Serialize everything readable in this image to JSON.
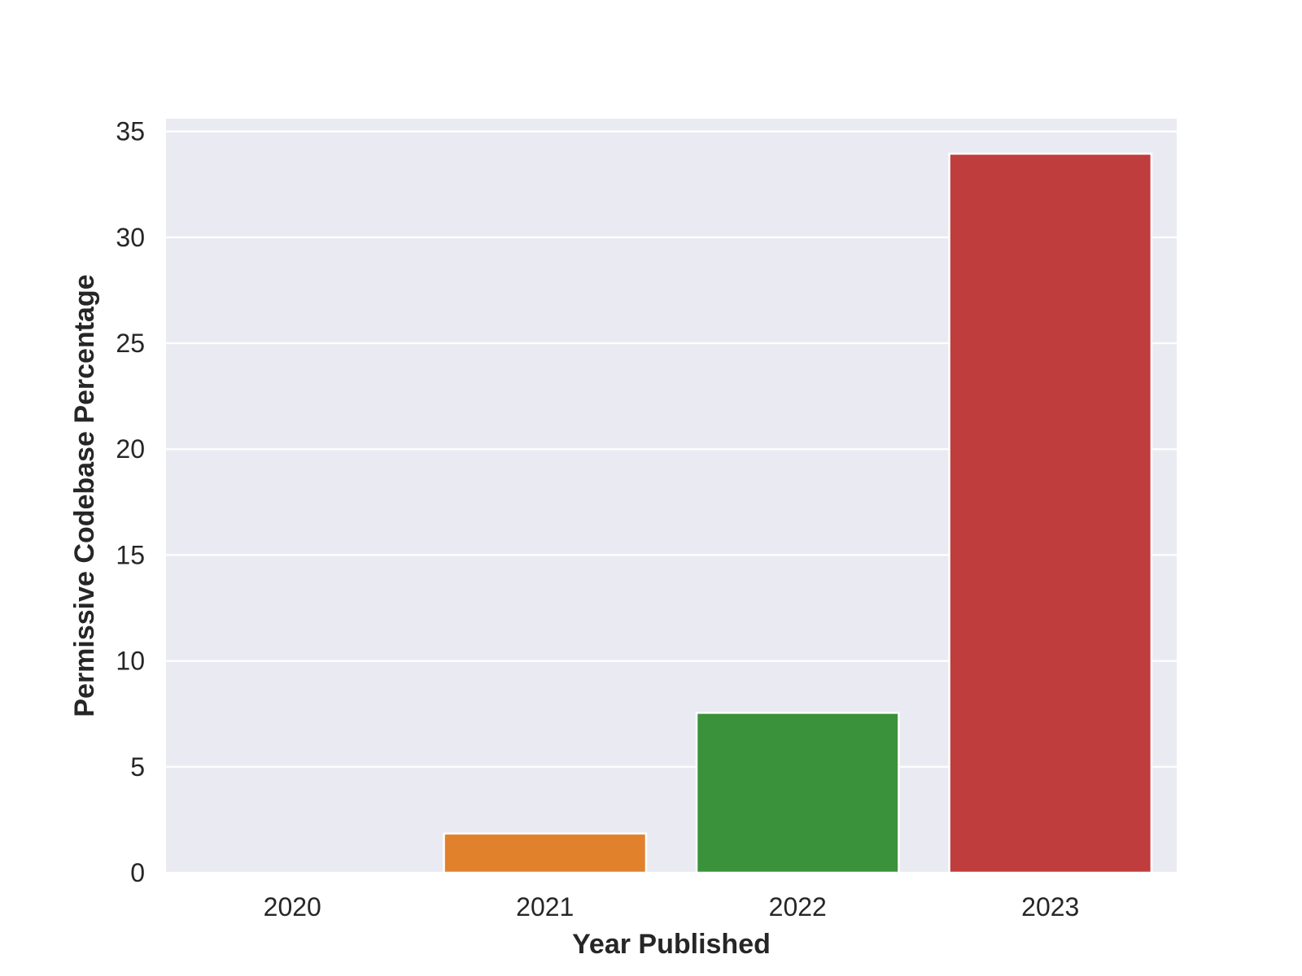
{
  "chart_data": {
    "type": "bar",
    "title": "",
    "xlabel": "Year Published",
    "ylabel": "Permissive Codebase Percentage",
    "categories": [
      "2020",
      "2021",
      "2022",
      "2023"
    ],
    "values": [
      0,
      1.85,
      7.55,
      33.95
    ],
    "colors": [
      "#1f77b4",
      "#e1812c",
      "#3a923a",
      "#c03d3e"
    ],
    "ylim": [
      0,
      35.6
    ],
    "yticks": [
      0,
      5,
      10,
      15,
      20,
      25,
      30,
      35
    ],
    "grid": true,
    "legend": "none",
    "style": {
      "plot_background": "#eaeaf2",
      "grid_color": "#ffffff",
      "bar_edge_color": "#ffffff"
    }
  }
}
